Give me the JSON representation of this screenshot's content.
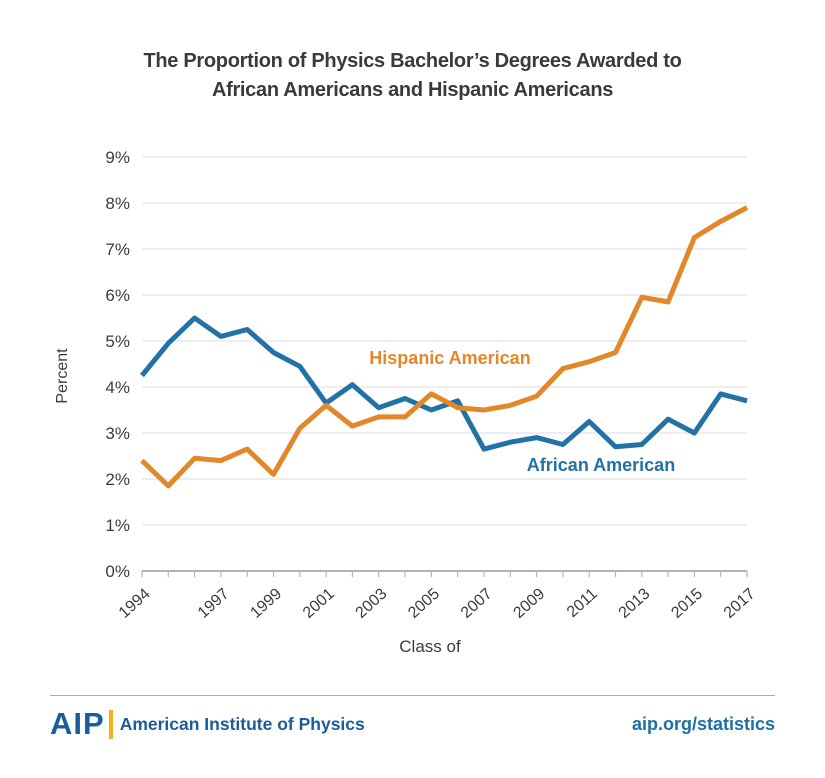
{
  "page": {
    "title_line1": "The Proportion of Physics Bachelor’s Degrees Awarded to",
    "title_line2": "African Americans and Hispanic Americans"
  },
  "chart_data": {
    "type": "line",
    "title": "The Proportion of Physics Bachelor’s Degrees Awarded to African Americans and Hispanic Americans",
    "xlabel": "Class of",
    "ylabel": "Percent",
    "x": [
      1994,
      1995,
      1996,
      1997,
      1998,
      1999,
      2000,
      2001,
      2002,
      2003,
      2004,
      2005,
      2006,
      2007,
      2008,
      2009,
      2010,
      2011,
      2012,
      2013,
      2014,
      2015,
      2016,
      2017
    ],
    "x_tick_labels": [
      "1994",
      "1997",
      "1999",
      "2001",
      "2003",
      "2005",
      "2007",
      "2009",
      "2011",
      "2013",
      "2015",
      "2017"
    ],
    "ylim": [
      0,
      9
    ],
    "ytick_labels": [
      "0%",
      "1%",
      "2%",
      "3%",
      "4%",
      "5%",
      "6%",
      "7%",
      "8%",
      "9%"
    ],
    "grid": true,
    "legend_position": "inline-annotations",
    "series": [
      {
        "name": "African American",
        "color": "#2271a7",
        "values": [
          4.25,
          4.95,
          5.5,
          5.1,
          5.25,
          4.75,
          4.45,
          3.65,
          4.05,
          3.55,
          3.75,
          3.5,
          3.7,
          2.65,
          2.8,
          2.9,
          2.75,
          3.25,
          2.7,
          2.75,
          3.3,
          3.0,
          3.85,
          3.7
        ]
      },
      {
        "name": "Hispanic American",
        "color": "#e2882b",
        "values": [
          2.4,
          1.85,
          2.45,
          2.4,
          2.65,
          2.1,
          3.1,
          3.6,
          3.15,
          3.35,
          3.35,
          3.85,
          3.55,
          3.5,
          3.6,
          3.8,
          4.4,
          4.55,
          4.75,
          5.95,
          5.85,
          7.25,
          7.6,
          7.9
        ]
      }
    ],
    "colors": {
      "african_american": "#2271a7",
      "hispanic_american": "#e2882b",
      "gridline": "#dcdcdc",
      "axis_line": "#9a9a9a",
      "tick_text": "#3c3c3c"
    }
  },
  "footer": {
    "logo_text": "AIP",
    "org_name": "American Institute of Physics",
    "link": "aip.org/statistics"
  }
}
